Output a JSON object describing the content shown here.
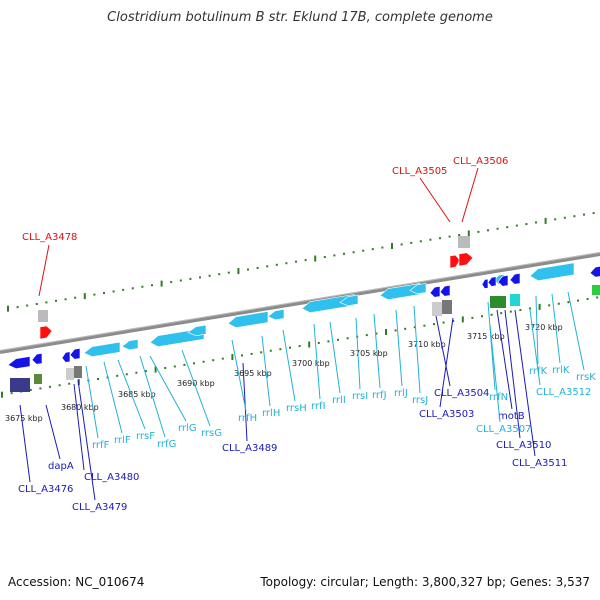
{
  "title": "Clostridium botulinum B str. Eklund 17B, complete genome",
  "footer": {
    "accession": "Accession: NC_010674",
    "topology": "Topology: circular; Length: 3,800,327 bp; Genes: 3,537"
  },
  "colors": {
    "backbone": "#8c8c8c",
    "tick": "#2e7d1f",
    "red_label": "#e01010",
    "blue_label": "#1a1ab8",
    "cyan_label": "#22b2d6",
    "gene_blue": "#1414e6",
    "gene_cyan": "#2fc0ee",
    "gene_red": "#ff1010"
  },
  "scale_labels": [
    "3675 kbp",
    "3680 kbp",
    "3685 kbp",
    "3690 kbp",
    "3695 kbp",
    "3700 kbp",
    "3705 kbp",
    "3710 kbp",
    "3715 kbp",
    "3720 kbp"
  ],
  "red_labels": [
    "CLL_A3478",
    "CLL_A3505",
    "CLL_A3506"
  ],
  "blue_labels": [
    "dapA",
    "CLL_A3476",
    "CLL_A3480",
    "CLL_A3479",
    "CLL_A3489",
    "CLL_A3504",
    "CLL_A3503",
    "motB",
    "CLL_A3510",
    "CLL_A3511"
  ],
  "cyan_labels": [
    "rrfF",
    "rrlF",
    "rrsF",
    "rrfG",
    "rrlG",
    "rrsG",
    "rrfH",
    "rrlH",
    "rrsH",
    "rrfI",
    "rrlI",
    "rrsI",
    "rrfJ",
    "rrlJ",
    "rrsJ",
    "rrfN",
    "CLL_A3507",
    "CLL_A3512",
    "rrfK",
    "rrlK",
    "rrsK"
  ]
}
